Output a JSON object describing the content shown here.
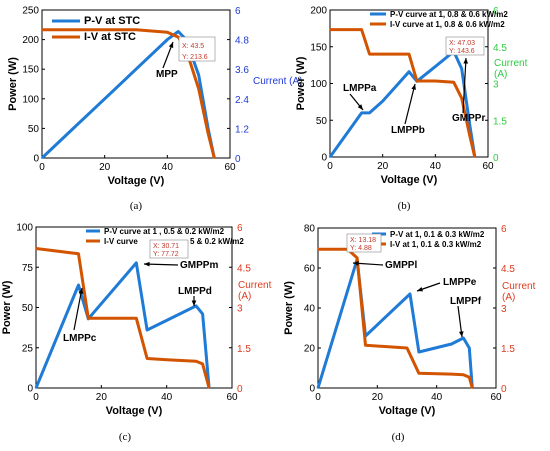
{
  "colors": {
    "pv": "#1f7bd6",
    "iv": "#d35400",
    "axis": "#000000",
    "current_blue": "#1f3bd6",
    "current_green": "#2ecc40",
    "current_red": "#e03b1f"
  },
  "panels": [
    {
      "caption": "(a)",
      "xlabel": "Voltage (V)",
      "ylabel": "Power (W)",
      "y2label": "Current (A)",
      "xticks": [
        "0",
        "20",
        "40",
        "60"
      ],
      "yticks": [
        "0",
        "50",
        "100",
        "150",
        "200",
        "250"
      ],
      "y2ticks": [
        "0",
        "1.2",
        "2.4",
        "3.6",
        "4.8",
        "6"
      ],
      "legend": [
        "P-V  at STC",
        "I-V  at STC"
      ],
      "datatip": [
        "X: 43.5",
        "Y: 213.6"
      ],
      "annotations": [
        "MPP"
      ]
    },
    {
      "caption": "(b)",
      "xlabel": "Voltage (V)",
      "ylabel": "Power (W)",
      "y2label": "Current",
      "y2label2": "(A)",
      "xticks": [
        "0",
        "20",
        "40",
        "60"
      ],
      "yticks": [
        "0",
        "50",
        "100",
        "150",
        "200"
      ],
      "y2ticks": [
        "0",
        "1.5",
        "3",
        "4.5",
        "6"
      ],
      "legend": [
        "P-V curve at 1, 0.8 & 0.6 kW/m2",
        "I-V curve at 1, 0.8 & 0.6 kW/m2"
      ],
      "datatip": [
        "X: 47.03",
        "Y: 143.6"
      ],
      "annotations": [
        "LMPPa",
        "LMPPb",
        "GMPPr"
      ]
    },
    {
      "caption": "(c)",
      "xlabel": "Voltage (V)",
      "ylabel": "Power (W)",
      "y2label": "Current",
      "y2label2": "(A)",
      "xticks": [
        "0",
        "20",
        "40",
        "60"
      ],
      "yticks": [
        "0",
        "25",
        "50",
        "75",
        "100"
      ],
      "y2ticks": [
        "0",
        "1.5",
        "3",
        "4.5",
        "6"
      ],
      "legend": [
        "P-V curve at 1 , 0.5 & 0.2 kW/m2",
        "I-V curve"
      ],
      "legend_tail": "5 & 0.2 kW/m2",
      "datatip": [
        "X: 30.71",
        "Y: 77.72"
      ],
      "annotations": [
        "GMPPm",
        "LMPPd",
        "LMPPc"
      ]
    },
    {
      "caption": "(d)",
      "xlabel": "Voltage (V)",
      "ylabel": "Power (W)",
      "y2label": "Current",
      "y2label2": "(A)",
      "xticks": [
        "0",
        "20",
        "40",
        "60"
      ],
      "yticks": [
        "0",
        "20",
        "40",
        "60",
        "80"
      ],
      "y2ticks": [
        "0",
        "1.5",
        "3",
        "4.5",
        "6"
      ],
      "legend": [
        "P-V at 1, 0.1 & 0.3 kW/m2",
        "I-V at 1, 0.1 & 0.3 kW/m2"
      ],
      "datatip": [
        "X: 13.18",
        "Y: 4.88"
      ],
      "annotations": [
        "GMPPl",
        "LMPPe",
        "LMPPf"
      ]
    }
  ],
  "chart_data": [
    {
      "type": "line",
      "title": "",
      "xlabel": "Voltage (V)",
      "ylabel": "Power (W)",
      "y2label": "Current (A)",
      "xlim": [
        0,
        60
      ],
      "ylim": [
        0,
        250
      ],
      "y2lim": [
        0,
        6
      ],
      "series": [
        {
          "name": "P-V  at STC",
          "axis": "left",
          "x": [
            0,
            10,
            20,
            30,
            40,
            43.5,
            46,
            50,
            53,
            55
          ],
          "y": [
            0,
            50,
            100,
            150,
            200,
            213.6,
            200,
            140,
            50,
            0
          ]
        },
        {
          "name": "I-V  at STC",
          "axis": "right",
          "x": [
            0,
            10,
            20,
            30,
            40,
            43.5,
            46,
            50,
            53,
            55
          ],
          "y": [
            5.2,
            5.2,
            5.2,
            5.2,
            5.1,
            4.9,
            4.4,
            2.8,
            1.0,
            0
          ]
        }
      ]
    },
    {
      "type": "line",
      "title": "",
      "xlabel": "Voltage (V)",
      "ylabel": "Power (W)",
      "y2label": "Current (A)",
      "xlim": [
        0,
        60
      ],
      "ylim": [
        0,
        200
      ],
      "y2lim": [
        0,
        6
      ],
      "series": [
        {
          "name": "P-V curve at 1, 0.8 & 0.6 kW/m2",
          "axis": "left",
          "x": [
            0,
            12,
            15,
            20,
            30,
            33,
            40,
            47.03,
            50,
            53,
            55
          ],
          "y": [
            0,
            60,
            60,
            76,
            116,
            103,
            123,
            143.6,
            120,
            45,
            0
          ]
        },
        {
          "name": "I-V curve at 1, 0.8 & 0.6 kW/m2",
          "axis": "right",
          "x": [
            0,
            12,
            15,
            20,
            30,
            33,
            40,
            47.03,
            50,
            53,
            55
          ],
          "y": [
            5.2,
            5.2,
            4.2,
            4.2,
            4.2,
            3.1,
            3.1,
            3.05,
            2.4,
            0.9,
            0
          ]
        }
      ]
    },
    {
      "type": "line",
      "title": "",
      "xlabel": "Voltage (V)",
      "ylabel": "Power (W)",
      "y2label": "Current (A)",
      "xlim": [
        0,
        60
      ],
      "ylim": [
        0,
        100
      ],
      "y2lim": [
        0,
        6
      ],
      "series": [
        {
          "name": "P-V curve at 1 , 0.5 & 0.2 kW/m2",
          "axis": "left",
          "x": [
            0,
            13,
            16,
            30.71,
            34,
            40,
            49,
            51,
            53
          ],
          "y": [
            0,
            64,
            43,
            77.72,
            36,
            42,
            51,
            46,
            0
          ]
        },
        {
          "name": "I-V curve",
          "axis": "right",
          "x": [
            0,
            13,
            16,
            30.71,
            34,
            40,
            49,
            51,
            53
          ],
          "y": [
            5.2,
            5.0,
            2.6,
            2.6,
            1.1,
            1.05,
            1.0,
            0.9,
            0
          ]
        }
      ]
    },
    {
      "type": "line",
      "title": "",
      "xlabel": "Voltage (V)",
      "ylabel": "Power (W)",
      "y2label": "Current (A)",
      "xlim": [
        0,
        60
      ],
      "ylim": [
        0,
        80
      ],
      "y2lim": [
        0,
        6
      ],
      "series": [
        {
          "name": "P-V at 1, 0.1 & 0.3 kW/m2",
          "axis": "left",
          "x": [
            0,
            13.18,
            16,
            31,
            34,
            45,
            49,
            51,
            52
          ],
          "y": [
            0,
            64.3,
            26,
            47,
            18,
            22,
            25,
            20,
            0
          ]
        },
        {
          "name": "I-V at 1, 0.1 & 0.3 kW/m2",
          "axis": "right",
          "x": [
            0,
            10,
            13.18,
            16,
            30,
            34,
            45,
            49,
            51,
            52
          ],
          "y": [
            5.2,
            5.2,
            4.88,
            1.6,
            1.5,
            0.55,
            0.52,
            0.5,
            0.4,
            0
          ]
        }
      ]
    }
  ]
}
